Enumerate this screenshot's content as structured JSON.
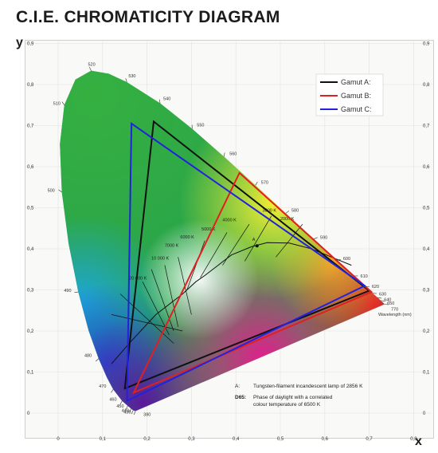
{
  "title": "C.I.E. CHROMATICITY DIAGRAM",
  "axis_y_label": "y",
  "axis_x_label": "x",
  "axis_ticks": [
    "0",
    "0,1",
    "0,2",
    "0,3",
    "0,4",
    "0,5",
    "0,6",
    "0,7",
    "0,8",
    "0,9"
  ],
  "wavelength_labels": [
    "380",
    "430",
    "440",
    "450",
    "460",
    "470",
    "480",
    "490",
    "500",
    "510",
    "520",
    "530",
    "540",
    "550",
    "560",
    "570",
    "580",
    "590",
    "600",
    "610",
    "620",
    "630",
    "640",
    "650",
    "770"
  ],
  "wavelength_axis_label": "Wavelength (nm)",
  "kelvin_labels": [
    "20 000 K",
    "10 000 K",
    "7000 K",
    "6000 K",
    "5000 K",
    "4000 K",
    "3000 K",
    "2000 K"
  ],
  "illuminant_a_marker": "A",
  "notes": {
    "a_key": "A:",
    "a_text": "Tungsten-filament incandescent lamp of 2856 K",
    "d65_key": "D65:",
    "d65_text_1": "Phase of daylight with a correlated",
    "d65_text_2": "colour temperature of 6500 K"
  },
  "legend": [
    {
      "name": "Gamut A:",
      "color": "#111111"
    },
    {
      "name": "Gamut B:",
      "color": "#e02020"
    },
    {
      "name": "Gamut C:",
      "color": "#2222dd"
    }
  ],
  "gamuts": {
    "gamut_a": [
      [
        0.215,
        0.71
      ],
      [
        0.7,
        0.298
      ],
      [
        0.15,
        0.06
      ]
    ],
    "gamut_b": [
      [
        0.408,
        0.585
      ],
      [
        0.705,
        0.295
      ],
      [
        0.17,
        0.05
      ]
    ],
    "gamut_c": [
      [
        0.165,
        0.705
      ],
      [
        0.69,
        0.31
      ],
      [
        0.155,
        0.03
      ]
    ]
  },
  "colors": {
    "background": "#ffffff",
    "plot_background": "#f9f9f7"
  }
}
